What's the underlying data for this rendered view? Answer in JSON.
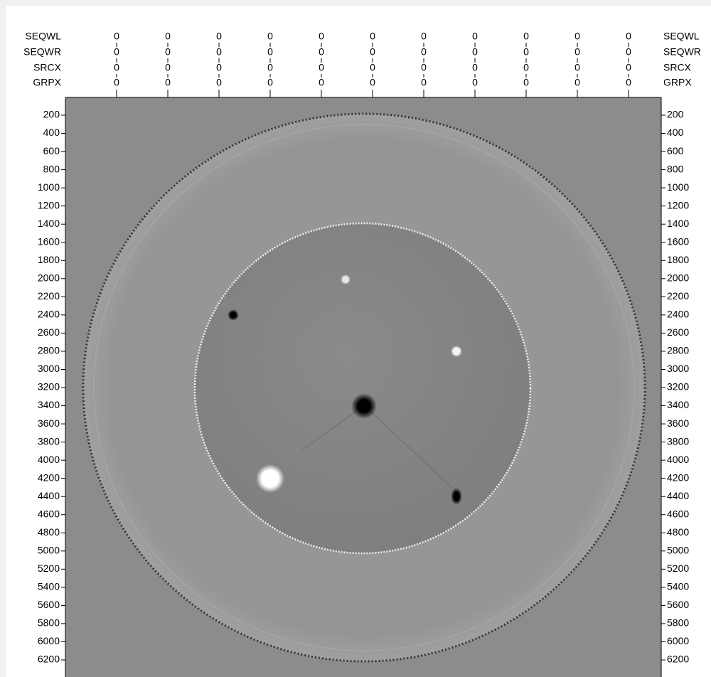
{
  "header": {
    "rows": [
      {
        "label": "SEQWL",
        "values": [
          0,
          0,
          0,
          0,
          0,
          0,
          0,
          0,
          0,
          0,
          0
        ]
      },
      {
        "label": "SEQWR",
        "values": [
          0,
          0,
          0,
          0,
          0,
          0,
          0,
          0,
          0,
          0,
          0
        ]
      },
      {
        "label": "SRCX",
        "values": [
          0,
          0,
          0,
          0,
          0,
          0,
          0,
          0,
          0,
          0,
          0
        ]
      },
      {
        "label": "GRPX",
        "values": [
          0,
          0,
          0,
          0,
          0,
          0,
          0,
          0,
          0,
          0,
          0
        ]
      }
    ]
  },
  "y_axis": {
    "ticks": [
      200,
      400,
      600,
      800,
      1000,
      1200,
      1400,
      1600,
      1800,
      2000,
      2200,
      2400,
      2600,
      2800,
      3000,
      3200,
      3400,
      3600,
      3800,
      4000,
      4200,
      4400,
      4600,
      4800,
      5000,
      5200,
      5400,
      5600,
      5800,
      6000,
      6200
    ]
  }
}
